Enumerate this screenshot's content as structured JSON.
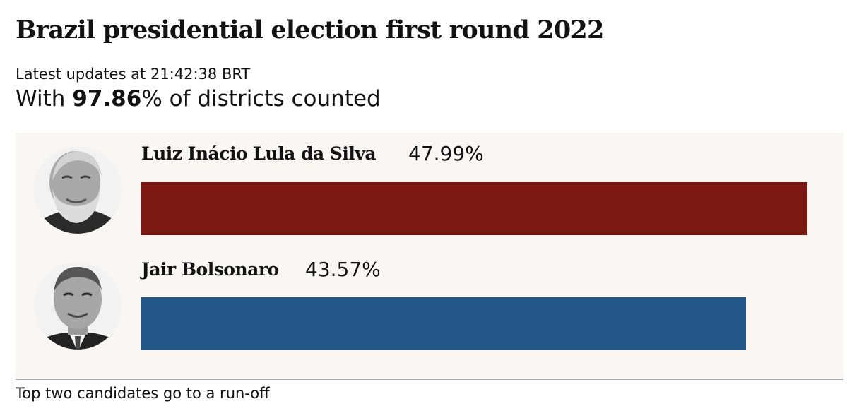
{
  "header": {
    "title": "Brazil presidential election first round 2022",
    "updated": "Latest updates at 21:42:38 BRT",
    "counted_prefix": "With ",
    "counted_value": "97.86",
    "counted_suffix": "% of districts counted"
  },
  "footnote": "Top two candidates go to a run-off",
  "colors": {
    "lula": "#7b1812",
    "bolsonaro": "#225687"
  },
  "chart_data": {
    "type": "bar",
    "orientation": "horizontal",
    "title": "Brazil presidential election first round 2022",
    "categories": [
      "Luiz Inácio Lula da Silva",
      "Jair Bolsonaro"
    ],
    "values": [
      47.99,
      43.57
    ],
    "value_labels": [
      "47.99%",
      "43.57%"
    ],
    "unit": "%",
    "xlim": [
      0,
      50
    ],
    "grid": false,
    "legend": "none",
    "candidates": [
      {
        "name": "Luiz Inácio Lula da Silva",
        "value": 47.99,
        "label": "47.99%",
        "color": "#7b1812",
        "icon": "lula-portrait-icon"
      },
      {
        "name": "Jair Bolsonaro",
        "value": 43.57,
        "label": "43.57%",
        "color": "#225687",
        "icon": "bolsonaro-portrait-icon"
      }
    ]
  }
}
